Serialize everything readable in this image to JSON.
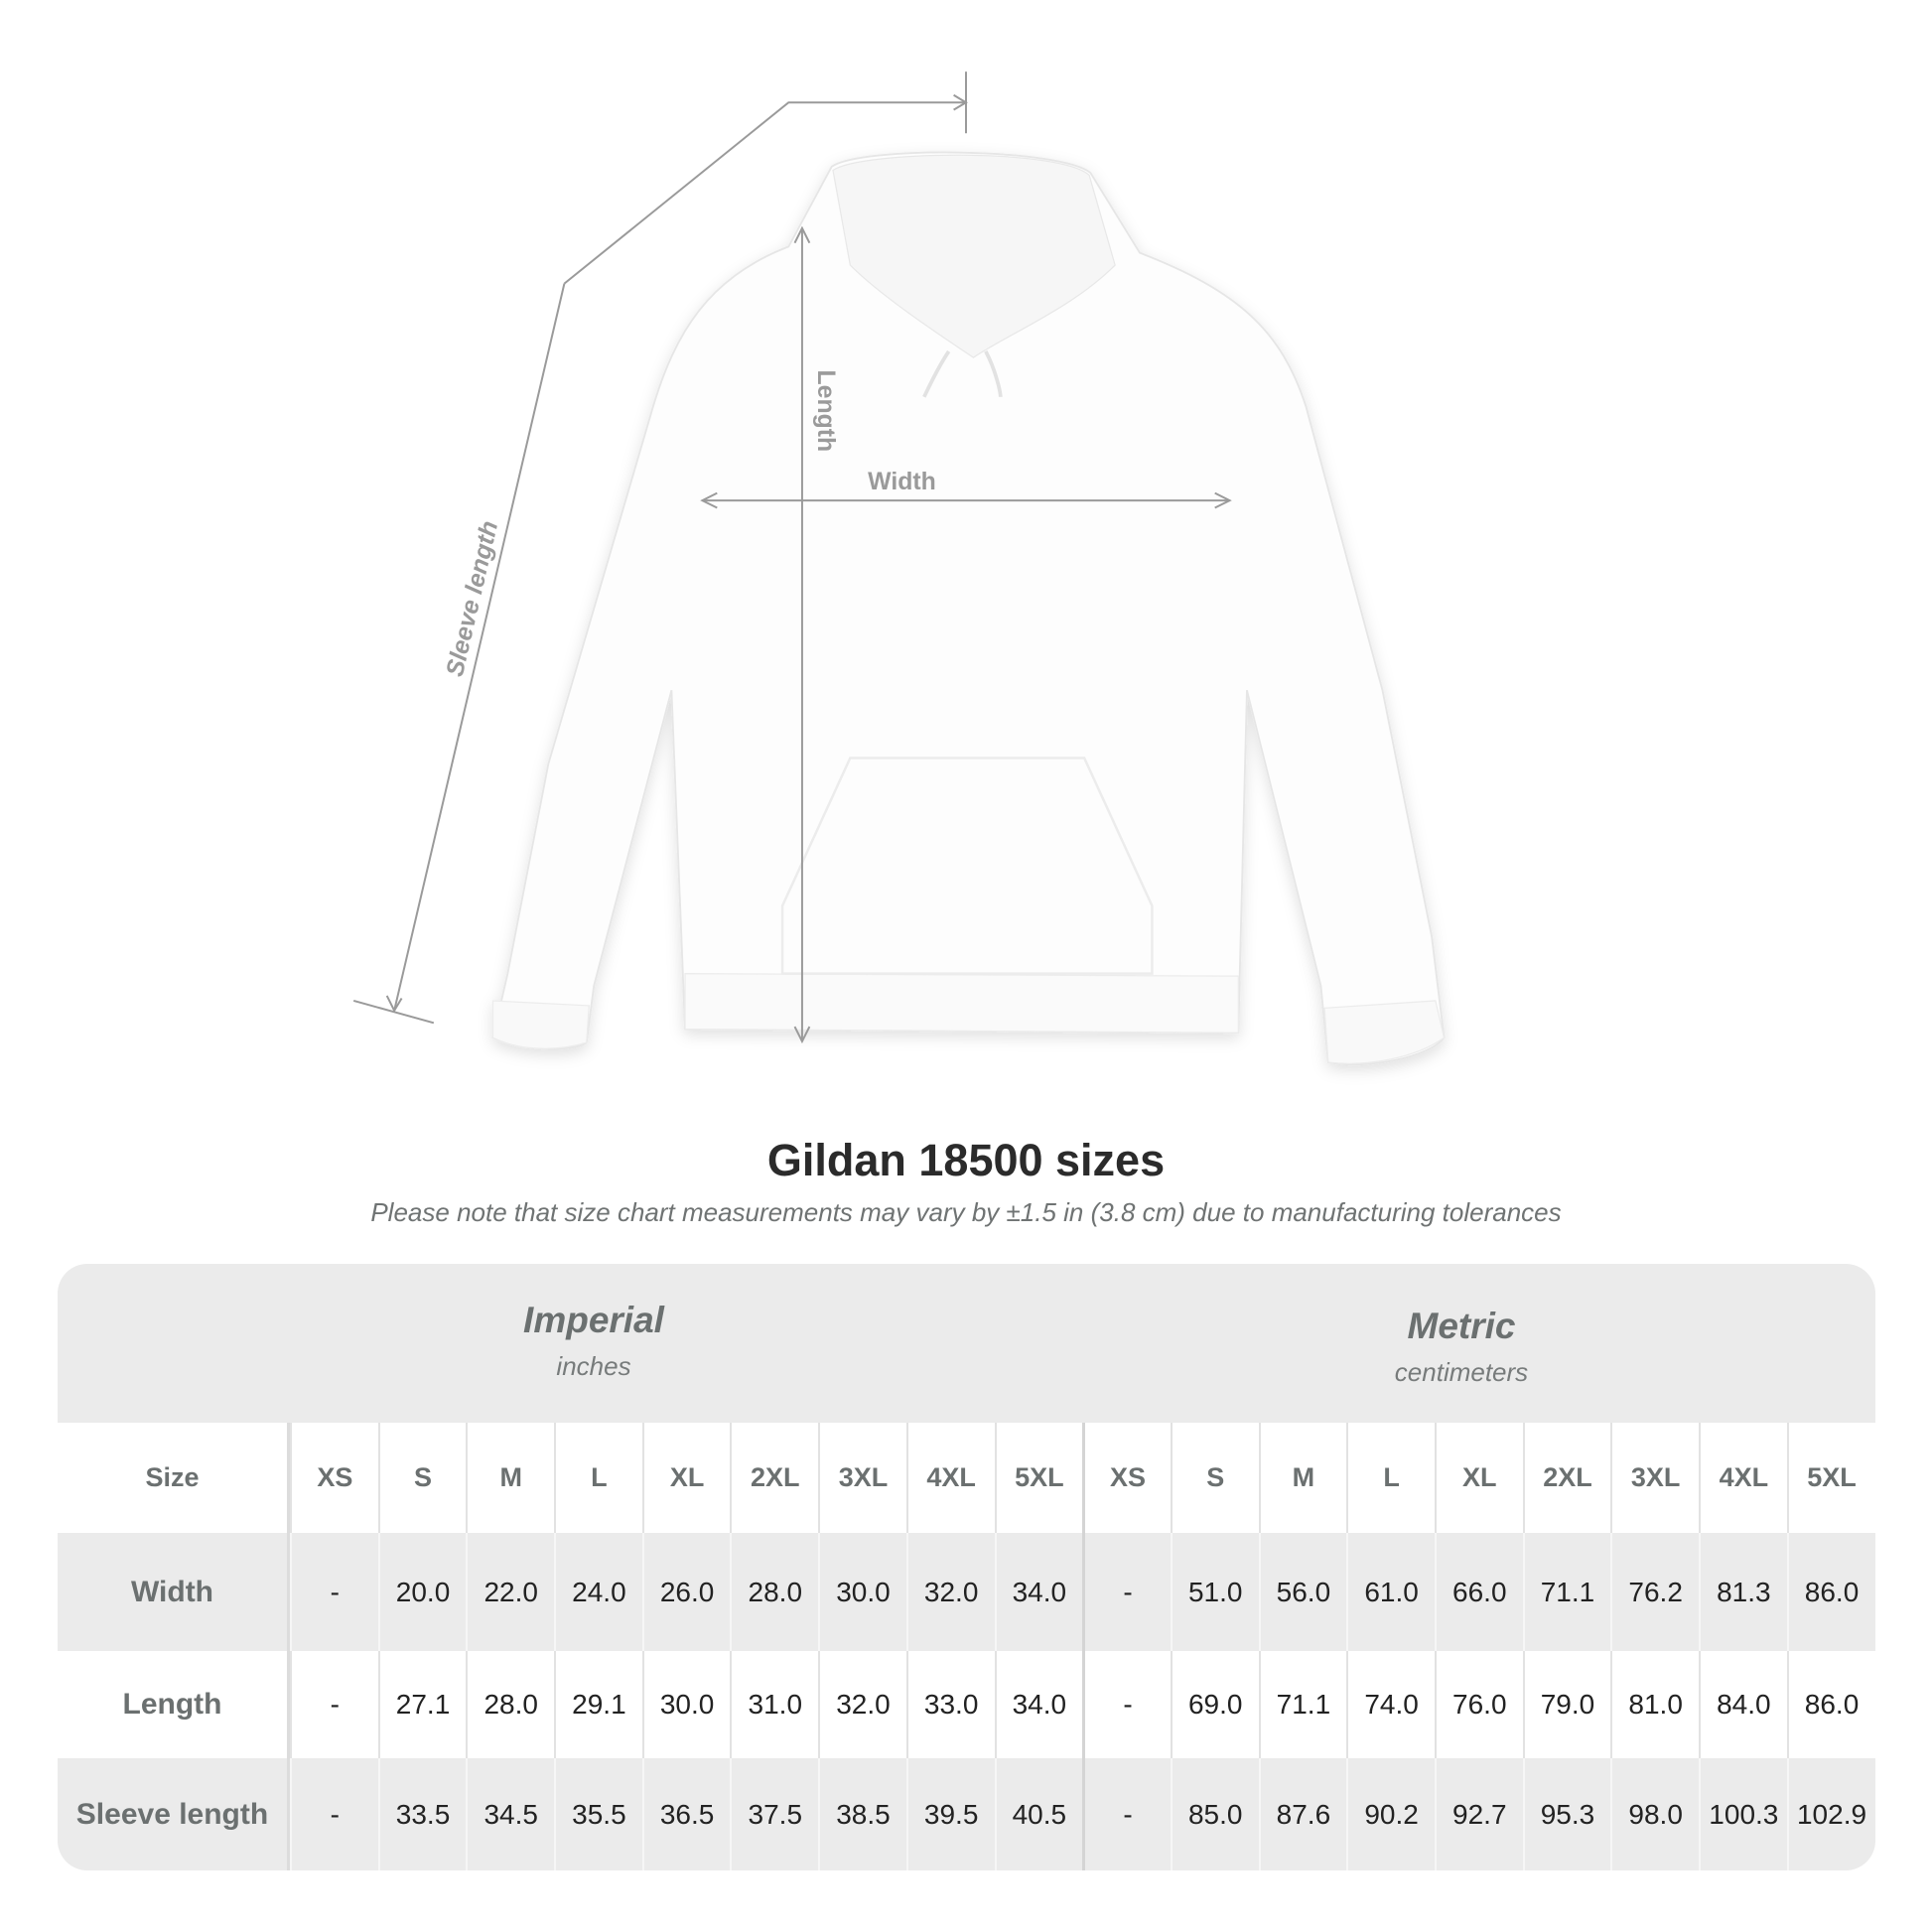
{
  "diagram": {
    "labels": {
      "length": "Length",
      "width": "Width",
      "sleeve": "Sleeve length"
    },
    "line_color": "#9a9a9a",
    "label_color": "#9a9a9a"
  },
  "title": "Gildan 18500 sizes",
  "note": "Please note that size chart measurements may vary by ±1.5 in (3.8 cm) due to manufacturing tolerances",
  "table": {
    "imperial": {
      "name": "Imperial",
      "unit": "inches"
    },
    "metric": {
      "name": "Metric",
      "unit": "centimeters"
    },
    "size_label": "Size",
    "sizes": [
      "XS",
      "S",
      "M",
      "L",
      "XL",
      "2XL",
      "3XL",
      "4XL",
      "5XL"
    ],
    "rows": [
      {
        "label": "Width",
        "imperial": [
          "-",
          "20.0",
          "22.0",
          "24.0",
          "26.0",
          "28.0",
          "30.0",
          "32.0",
          "34.0"
        ],
        "metric": [
          "-",
          "51.0",
          "56.0",
          "61.0",
          "66.0",
          "71.1",
          "76.2",
          "81.3",
          "86.0"
        ]
      },
      {
        "label": "Length",
        "imperial": [
          "-",
          "27.1",
          "28.0",
          "29.1",
          "30.0",
          "31.0",
          "32.0",
          "33.0",
          "34.0"
        ],
        "metric": [
          "-",
          "69.0",
          "71.1",
          "74.0",
          "76.0",
          "79.0",
          "81.0",
          "84.0",
          "86.0"
        ]
      },
      {
        "label": "Sleeve length",
        "imperial": [
          "-",
          "33.5",
          "34.5",
          "35.5",
          "36.5",
          "37.5",
          "38.5",
          "39.5",
          "40.5"
        ],
        "metric": [
          "-",
          "85.0",
          "87.6",
          "90.2",
          "92.7",
          "95.3",
          "98.0",
          "100.3",
          "102.9"
        ]
      }
    ]
  }
}
